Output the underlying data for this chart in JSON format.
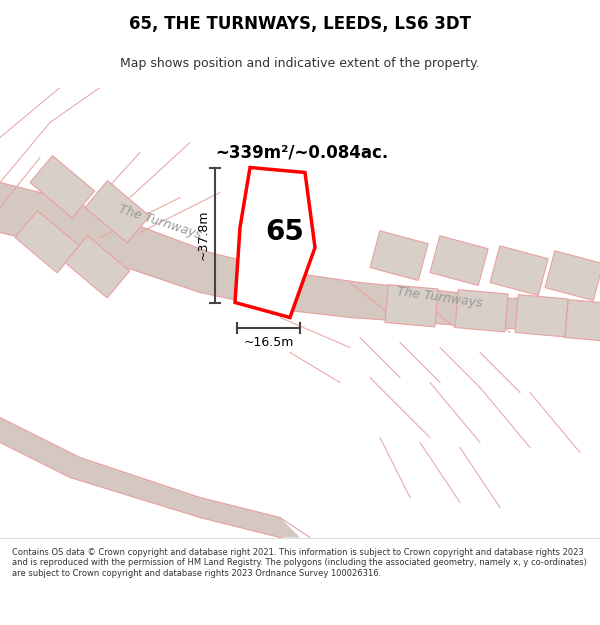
{
  "title": "65, THE TURNWAYS, LEEDS, LS6 3DT",
  "subtitle": "Map shows position and indicative extent of the property.",
  "area_text": "~339m²/~0.084ac.",
  "dim_width": "~16.5m",
  "dim_height": "~37.8m",
  "plot_number": "65",
  "background_color": "#f5f5f5",
  "map_background": "#f0eeec",
  "footer_text": "Contains OS data © Crown copyright and database right 2021. This information is subject to Crown copyright and database rights 2023 and is reproduced with the permission of HM Land Registry. The polygons (including the associated geometry, namely x, y co-ordinates) are subject to Crown copyright and database rights 2023 Ordnance Survey 100026316.",
  "road_color": "#d4c8c0",
  "building_color": "#d8d0c8",
  "line_color": "#e8a0a0",
  "plot_color": "#ff0000",
  "road_label1": "The Turnways",
  "road_label2": "The Turnways"
}
